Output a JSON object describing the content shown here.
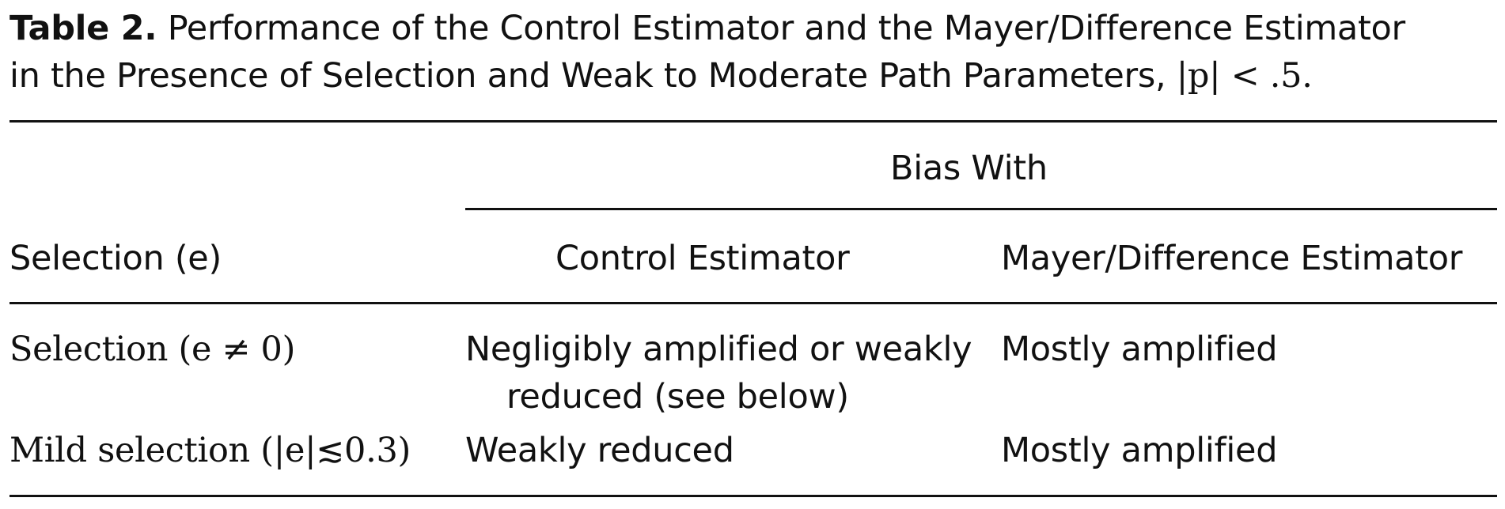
{
  "caption": {
    "label": "Table 2.",
    "line1": "Performance of the Control Estimator and the Mayer/Difference Estimator",
    "line2_text": "in the Presence of Selection and Weak to Moderate Path Parameters,",
    "line2_math": "|p| < .5."
  },
  "table": {
    "group_header": "Bias With",
    "columns": [
      "Selection (e)",
      "Control Estimator",
      "Mayer/Difference Estimator"
    ],
    "rows": [
      {
        "selection": "Selection (e ≠ 0)",
        "control_line1": "Negligibly amplified or weakly",
        "control_line2": "reduced (see below)",
        "mayer": "Mostly amplified"
      },
      {
        "selection": "Mild selection (|e|≲0.3)",
        "control_line1": "Weakly reduced",
        "mayer": "Mostly amplified"
      }
    ]
  }
}
